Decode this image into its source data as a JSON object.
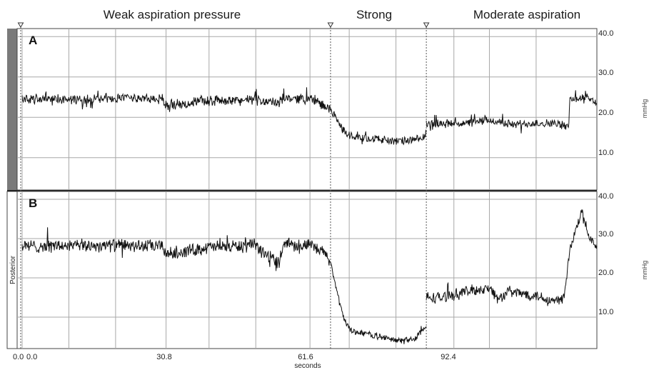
{
  "chart_data": [
    {
      "panel": "A",
      "type": "line",
      "phase_labels": [
        "Weak aspiration pressure",
        "Strong",
        "Moderate aspiration"
      ],
      "phase_boundaries_x": [
        0.0,
        66.0,
        86.5
      ],
      "xlim": [
        0.0,
        123.0
      ],
      "ylim": [
        2.0,
        42.0
      ],
      "y_ticks": [
        "10.0",
        "20.0",
        "30.0",
        "40.0"
      ],
      "y_tick_values": [
        10,
        20,
        30,
        40
      ],
      "segments": [
        {
          "x": [
            0,
            10,
            20,
            30,
            31,
            40,
            50,
            55,
            56,
            62,
            65,
            66
          ],
          "y": [
            24.5,
            24.5,
            24.7,
            24.5,
            23.0,
            24.2,
            24.3,
            23.5,
            24.8,
            24.6,
            22.5,
            22.0
          ]
        },
        {
          "x": [
            66,
            68,
            69.5,
            70.5,
            75,
            80,
            85,
            86.5
          ],
          "y": [
            22.0,
            18.0,
            16.0,
            15.2,
            14.8,
            14.0,
            14.5,
            15.5
          ]
        },
        {
          "x": [
            86.5,
            95,
            100,
            105,
            110,
            114,
            117,
            117.2,
            121,
            123
          ],
          "y": [
            18.5,
            18.5,
            19.3,
            18.2,
            18.6,
            18.5,
            17.7,
            24.5,
            25.0,
            23.5
          ]
        }
      ],
      "noise": [
        1.2,
        1.0,
        1.0
      ]
    },
    {
      "panel": "B",
      "type": "line",
      "side_label": "Posterior",
      "xlabel": "seconds",
      "x_ticks": [
        "0.0",
        "30.8",
        "61.6",
        "92.4"
      ],
      "x_tick_values": [
        0.0,
        30.8,
        61.6,
        92.4
      ],
      "extra_x_tick": "0.0",
      "xlim": [
        0.0,
        123.0
      ],
      "ylim": [
        2.0,
        42.0
      ],
      "y_ticks": [
        "10.0",
        "20.0",
        "30.0",
        "40.0"
      ],
      "y_tick_values": [
        10,
        20,
        30,
        40
      ],
      "segments": [
        {
          "x": [
            0,
            20,
            30,
            31,
            40,
            50,
            52,
            55,
            56,
            62,
            65,
            66
          ],
          "y": [
            28.0,
            28.3,
            28.0,
            26.0,
            27.8,
            28.2,
            26.0,
            24.0,
            29.0,
            28.0,
            26.0,
            24.0
          ]
        },
        {
          "x": [
            66,
            68,
            69.5,
            70.5,
            75,
            80,
            84,
            86.5
          ],
          "y": [
            24.0,
            13.0,
            8.0,
            6.5,
            5.5,
            4.0,
            4.5,
            7.5
          ]
        },
        {
          "x": [
            86.5,
            90,
            95,
            100,
            102,
            104,
            110,
            114,
            116,
            117.2,
            119,
            120,
            121,
            123
          ],
          "y": [
            15.0,
            15.0,
            16.5,
            17.5,
            14.5,
            16.5,
            15.5,
            14.0,
            15.0,
            27.0,
            34.0,
            38.0,
            31.0,
            27.0
          ]
        }
      ],
      "noise": [
        1.6,
        0.8,
        1.4
      ]
    }
  ]
}
